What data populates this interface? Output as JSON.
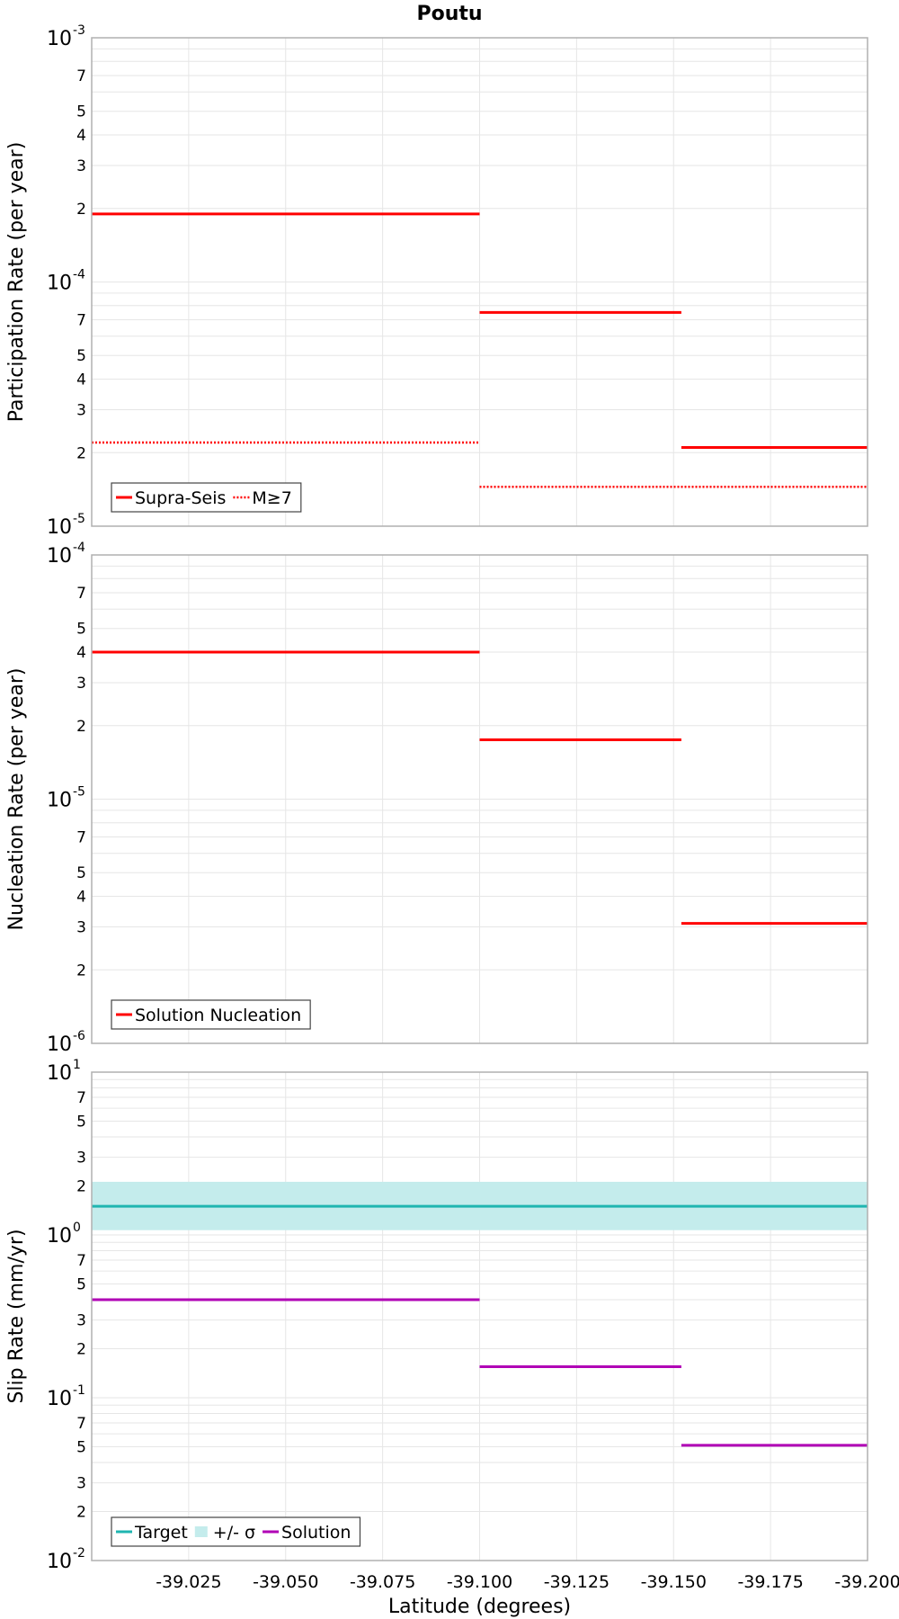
{
  "title": "Poutu",
  "colors": {
    "red": "#ff0000",
    "teal": "#1fb5b0",
    "teal_band": "#c4ecec",
    "magenta": "#b000b5",
    "grid": "#e6e6e6",
    "frame": "#b0b0b0"
  },
  "chart_data": [
    {
      "type": "line",
      "title": "Poutu",
      "xlabel": "Latitude (degrees)",
      "ylabel": "Participation Rate (per year)",
      "yscale": "log",
      "ylim": [
        1e-05,
        0.001
      ],
      "xlim": [
        -39.0,
        -39.2
      ],
      "grid": true,
      "legend_position": "bottom-left",
      "series": [
        {
          "name": "Supra-Seis",
          "style": "solid",
          "color": "#ff0000",
          "segments": [
            {
              "x": [
                -39.0,
                -39.1
              ],
              "y": 0.00019
            },
            {
              "x": [
                -39.1,
                -39.152
              ],
              "y": 7.5e-05
            },
            {
              "x": [
                -39.152,
                -39.2
              ],
              "y": 2.1e-05
            }
          ]
        },
        {
          "name": "M≥7",
          "style": "dotted",
          "color": "#ff0000",
          "segments": [
            {
              "x": [
                -39.0,
                -39.1
              ],
              "y": 2.2e-05
            },
            {
              "x": [
                -39.1,
                -39.2
              ],
              "y": 1.45e-05
            }
          ]
        }
      ]
    },
    {
      "type": "line",
      "xlabel": "Latitude (degrees)",
      "ylabel": "Nucleation Rate (per year)",
      "yscale": "log",
      "ylim": [
        1e-06,
        0.0001
      ],
      "xlim": [
        -39.0,
        -39.2
      ],
      "grid": true,
      "legend_position": "bottom-left",
      "series": [
        {
          "name": "Solution Nucleation",
          "style": "solid",
          "color": "#ff0000",
          "segments": [
            {
              "x": [
                -39.0,
                -39.1
              ],
              "y": 4e-05
            },
            {
              "x": [
                -39.1,
                -39.152
              ],
              "y": 1.75e-05
            },
            {
              "x": [
                -39.152,
                -39.2
              ],
              "y": 3.1e-06
            }
          ]
        }
      ]
    },
    {
      "type": "line",
      "xlabel": "Latitude (degrees)",
      "ylabel": "Slip Rate (mm/yr)",
      "yscale": "log",
      "ylim": [
        0.01,
        10
      ],
      "xlim": [
        -39.0,
        -39.2
      ],
      "grid": true,
      "legend_position": "bottom-left",
      "series": [
        {
          "name": "Target",
          "style": "solid",
          "color": "#1fb5b0",
          "segments": [
            {
              "x": [
                -39.0,
                -39.2
              ],
              "y": 1.5
            }
          ]
        },
        {
          "name": "+/- σ",
          "style": "band",
          "color": "#c4ecec",
          "band": {
            "x": [
              -39.0,
              -39.2
            ],
            "low": 1.07,
            "high": 2.12
          }
        },
        {
          "name": "Solution",
          "style": "solid",
          "color": "#b000b5",
          "segments": [
            {
              "x": [
                -39.0,
                -39.1
              ],
              "y": 0.4
            },
            {
              "x": [
                -39.1,
                -39.152
              ],
              "y": 0.155
            },
            {
              "x": [
                -39.152,
                -39.2
              ],
              "y": 0.051
            }
          ]
        }
      ]
    }
  ],
  "x_ticks": [
    "-39.025",
    "-39.050",
    "-39.075",
    "-39.100",
    "-39.125",
    "-39.150",
    "-39.175",
    "-39.200"
  ],
  "x_tick_values": [
    -39.025,
    -39.05,
    -39.075,
    -39.1,
    -39.125,
    -39.15,
    -39.175,
    -39.2
  ]
}
